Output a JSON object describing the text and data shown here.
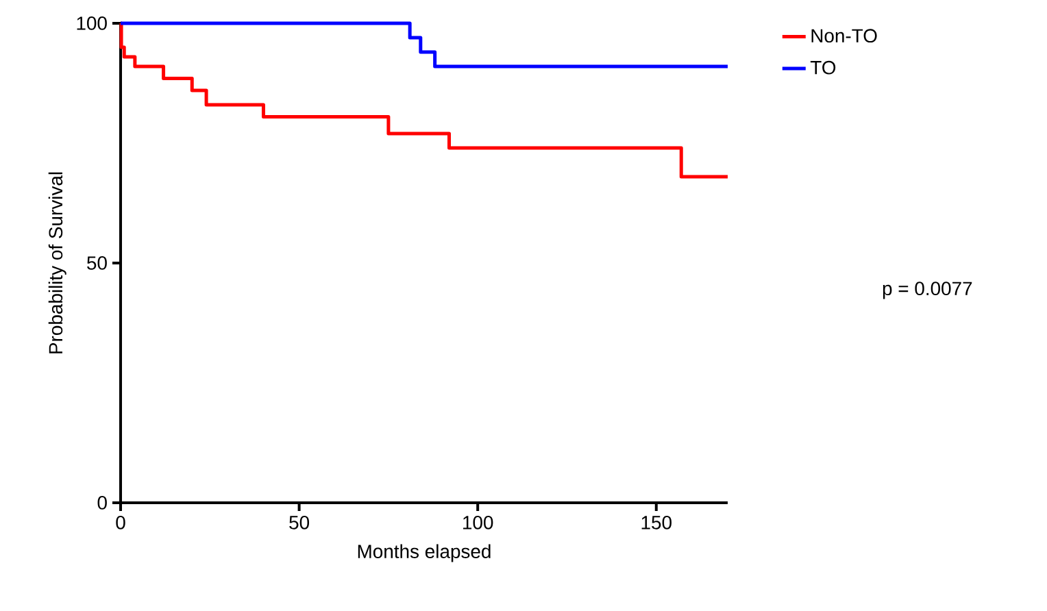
{
  "chart_data": {
    "type": "step",
    "xlabel": "Months elapsed",
    "ylabel": "Probability of Survival",
    "xlim": [
      0,
      170
    ],
    "ylim": [
      0,
      100
    ],
    "xticks": [
      0,
      50,
      100,
      150
    ],
    "yticks": [
      0,
      50,
      100
    ],
    "grid": false,
    "legend": "top right",
    "marker": "none",
    "line_style": "solid",
    "series": [
      {
        "name": "Non-TO",
        "color": "#ff0000",
        "x": [
          0,
          0.2,
          1,
          4,
          12,
          20,
          24,
          40,
          75,
          92,
          157,
          170
        ],
        "values": [
          100,
          95,
          93,
          91,
          88.5,
          86,
          83,
          80.5,
          77,
          74,
          68,
          68
        ]
      },
      {
        "name": "TO",
        "color": "#0000ff",
        "x": [
          0,
          81,
          84,
          88,
          170
        ],
        "values": [
          100,
          97,
          94,
          91,
          91
        ]
      }
    ],
    "annotations": [
      "p = 0.0077"
    ]
  }
}
